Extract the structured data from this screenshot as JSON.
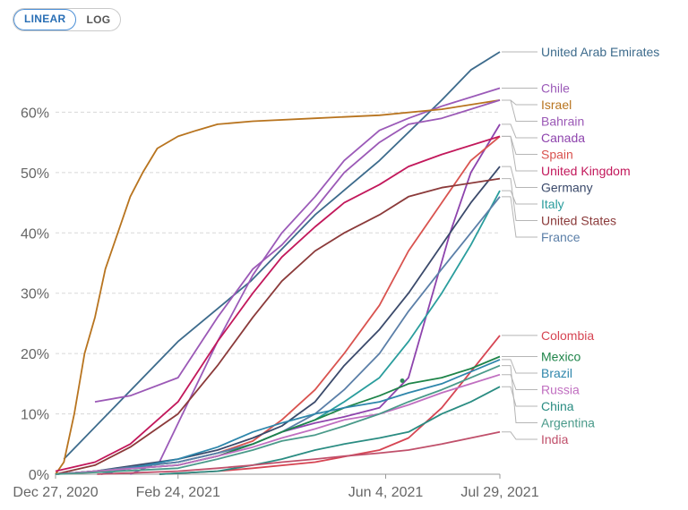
{
  "toggle": {
    "linear_label": "LINEAR",
    "log_label": "LOG",
    "active": "linear"
  },
  "chart_data": {
    "type": "line",
    "title": "",
    "xlabel": "",
    "ylabel": "",
    "x_ticks": [
      "Dec 27, 2020",
      "Feb 24, 2021",
      "Jun 4, 2021",
      "Jul 29, 2021"
    ],
    "x_range": [
      "2020-12-27",
      "2021-07-29"
    ],
    "y_ticks": [
      "0%",
      "10%",
      "20%",
      "30%",
      "40%",
      "50%",
      "60%"
    ],
    "y_range": [
      0,
      70
    ],
    "grid": "horizontal",
    "dot": {
      "x": "2021-06-12",
      "y": 15.5,
      "color": "#2e8b57"
    },
    "series": [
      {
        "name": "United Arab Emirates",
        "color": "#3d6b8c",
        "points": [
          [
            "2020-12-31",
            2.5
          ],
          [
            "2021-02-24",
            22
          ],
          [
            "2021-03-31",
            32
          ],
          [
            "2021-05-01",
            43
          ],
          [
            "2021-06-01",
            52
          ],
          [
            "2021-07-01",
            62
          ],
          [
            "2021-07-15",
            67
          ],
          [
            "2021-07-29",
            70
          ]
        ]
      },
      {
        "name": "Chile",
        "color": "#9b5ab8",
        "points": [
          [
            "2021-02-01",
            0
          ],
          [
            "2021-02-15",
            2
          ],
          [
            "2021-03-01",
            12
          ],
          [
            "2021-03-15",
            22
          ],
          [
            "2021-04-01",
            33
          ],
          [
            "2021-04-15",
            40
          ],
          [
            "2021-05-01",
            46
          ],
          [
            "2021-05-15",
            52
          ],
          [
            "2021-06-01",
            57
          ],
          [
            "2021-06-15",
            59
          ],
          [
            "2021-07-01",
            61
          ],
          [
            "2021-07-29",
            64
          ]
        ]
      },
      {
        "name": "Israel",
        "color": "#b8741f",
        "points": [
          [
            "2020-12-27",
            0
          ],
          [
            "2020-12-31",
            2
          ],
          [
            "2021-01-05",
            10
          ],
          [
            "2021-01-10",
            20
          ],
          [
            "2021-01-15",
            26
          ],
          [
            "2021-01-20",
            34
          ],
          [
            "2021-01-26",
            40
          ],
          [
            "2021-02-01",
            46
          ],
          [
            "2021-02-07",
            50
          ],
          [
            "2021-02-14",
            54
          ],
          [
            "2021-02-24",
            56
          ],
          [
            "2021-03-05",
            57
          ],
          [
            "2021-03-15",
            58
          ],
          [
            "2021-04-01",
            58.5
          ],
          [
            "2021-05-01",
            59
          ],
          [
            "2021-06-01",
            59.5
          ],
          [
            "2021-07-01",
            60.5
          ],
          [
            "2021-07-29",
            62
          ]
        ]
      },
      {
        "name": "Bahrain",
        "color": "#9b59b6",
        "points": [
          [
            "2021-01-15",
            12
          ],
          [
            "2021-02-01",
            13
          ],
          [
            "2021-02-24",
            16
          ],
          [
            "2021-03-15",
            26
          ],
          [
            "2021-04-01",
            34
          ],
          [
            "2021-04-15",
            38
          ],
          [
            "2021-05-01",
            44
          ],
          [
            "2021-05-15",
            50
          ],
          [
            "2021-06-01",
            55
          ],
          [
            "2021-06-15",
            58
          ],
          [
            "2021-07-01",
            59
          ],
          [
            "2021-07-29",
            62
          ]
        ]
      },
      {
        "name": "Canada",
        "color": "#8e44ad",
        "points": [
          [
            "2020-12-27",
            0
          ],
          [
            "2021-01-15",
            0.5
          ],
          [
            "2021-02-24",
            1.5
          ],
          [
            "2021-03-15",
            3
          ],
          [
            "2021-04-01",
            5
          ],
          [
            "2021-04-15",
            7
          ],
          [
            "2021-05-01",
            8.5
          ],
          [
            "2021-05-15",
            9.5
          ],
          [
            "2021-06-01",
            11
          ],
          [
            "2021-06-15",
            16
          ],
          [
            "2021-06-25",
            28
          ],
          [
            "2021-07-05",
            40
          ],
          [
            "2021-07-15",
            50
          ],
          [
            "2021-07-29",
            58
          ]
        ]
      },
      {
        "name": "Spain",
        "color": "#d9534f",
        "points": [
          [
            "2020-12-27",
            0
          ],
          [
            "2021-01-15",
            0.5
          ],
          [
            "2021-02-24",
            2
          ],
          [
            "2021-03-15",
            3.5
          ],
          [
            "2021-04-01",
            5.5
          ],
          [
            "2021-04-15",
            9
          ],
          [
            "2021-05-01",
            14
          ],
          [
            "2021-05-15",
            20
          ],
          [
            "2021-06-01",
            28
          ],
          [
            "2021-06-15",
            37
          ],
          [
            "2021-07-01",
            45
          ],
          [
            "2021-07-15",
            52
          ],
          [
            "2021-07-29",
            56
          ]
        ]
      },
      {
        "name": "United Kingdom",
        "color": "#c2185b",
        "points": [
          [
            "2020-12-27",
            0.5
          ],
          [
            "2021-01-15",
            2
          ],
          [
            "2021-02-01",
            5
          ],
          [
            "2021-02-24",
            12
          ],
          [
            "2021-03-15",
            22
          ],
          [
            "2021-04-01",
            30
          ],
          [
            "2021-04-15",
            36
          ],
          [
            "2021-05-01",
            41
          ],
          [
            "2021-05-15",
            45
          ],
          [
            "2021-06-01",
            48
          ],
          [
            "2021-06-15",
            51
          ],
          [
            "2021-07-01",
            53
          ],
          [
            "2021-07-29",
            56
          ]
        ]
      },
      {
        "name": "Germany",
        "color": "#3b4a6b",
        "points": [
          [
            "2020-12-27",
            0
          ],
          [
            "2021-01-15",
            0.5
          ],
          [
            "2021-02-24",
            2.5
          ],
          [
            "2021-03-15",
            4
          ],
          [
            "2021-04-01",
            6
          ],
          [
            "2021-04-15",
            8
          ],
          [
            "2021-05-01",
            12
          ],
          [
            "2021-05-15",
            18
          ],
          [
            "2021-06-01",
            24
          ],
          [
            "2021-06-15",
            30
          ],
          [
            "2021-07-01",
            38
          ],
          [
            "2021-07-15",
            45
          ],
          [
            "2021-07-29",
            51
          ]
        ]
      },
      {
        "name": "Italy",
        "color": "#2a9d9d",
        "points": [
          [
            "2020-12-27",
            0
          ],
          [
            "2021-01-15",
            0.5
          ],
          [
            "2021-02-24",
            2
          ],
          [
            "2021-03-15",
            3.5
          ],
          [
            "2021-04-01",
            5
          ],
          [
            "2021-04-15",
            7
          ],
          [
            "2021-05-01",
            9
          ],
          [
            "2021-05-15",
            12
          ],
          [
            "2021-06-01",
            16
          ],
          [
            "2021-06-15",
            22
          ],
          [
            "2021-07-01",
            30
          ],
          [
            "2021-07-15",
            38
          ],
          [
            "2021-07-29",
            47
          ]
        ]
      },
      {
        "name": "United States",
        "color": "#8b3a3a",
        "points": [
          [
            "2020-12-27",
            0
          ],
          [
            "2021-01-15",
            1.5
          ],
          [
            "2021-02-01",
            4.5
          ],
          [
            "2021-02-24",
            10
          ],
          [
            "2021-03-15",
            18
          ],
          [
            "2021-04-01",
            26
          ],
          [
            "2021-04-15",
            32
          ],
          [
            "2021-05-01",
            37
          ],
          [
            "2021-05-15",
            40
          ],
          [
            "2021-06-01",
            43
          ],
          [
            "2021-06-15",
            46
          ],
          [
            "2021-07-01",
            47.5
          ],
          [
            "2021-07-29",
            49
          ]
        ]
      },
      {
        "name": "France",
        "color": "#5b7fa8",
        "points": [
          [
            "2020-12-27",
            0
          ],
          [
            "2021-01-15",
            0.5
          ],
          [
            "2021-02-24",
            2
          ],
          [
            "2021-03-15",
            3.5
          ],
          [
            "2021-04-01",
            5
          ],
          [
            "2021-04-15",
            7
          ],
          [
            "2021-05-01",
            10
          ],
          [
            "2021-05-15",
            14
          ],
          [
            "2021-06-01",
            20
          ],
          [
            "2021-06-15",
            27
          ],
          [
            "2021-07-01",
            34
          ],
          [
            "2021-07-15",
            40
          ],
          [
            "2021-07-29",
            46
          ]
        ]
      },
      {
        "name": "Colombia",
        "color": "#d64553",
        "points": [
          [
            "2021-02-15",
            0
          ],
          [
            "2021-03-15",
            0.5
          ],
          [
            "2021-04-01",
            1
          ],
          [
            "2021-05-01",
            2
          ],
          [
            "2021-06-01",
            4
          ],
          [
            "2021-06-15",
            6
          ],
          [
            "2021-07-01",
            11
          ],
          [
            "2021-07-15",
            17
          ],
          [
            "2021-07-29",
            23
          ]
        ]
      },
      {
        "name": "Mexico",
        "color": "#1e8449",
        "points": [
          [
            "2020-12-27",
            0
          ],
          [
            "2021-01-15",
            0.5
          ],
          [
            "2021-02-24",
            1.5
          ],
          [
            "2021-03-15",
            3
          ],
          [
            "2021-04-01",
            5
          ],
          [
            "2021-04-15",
            7
          ],
          [
            "2021-05-01",
            9
          ],
          [
            "2021-05-15",
            11
          ],
          [
            "2021-06-01",
            13
          ],
          [
            "2021-06-15",
            15
          ],
          [
            "2021-07-01",
            16
          ],
          [
            "2021-07-15",
            17.5
          ],
          [
            "2021-07-29",
            19.5
          ]
        ]
      },
      {
        "name": "Brazil",
        "color": "#2e86ab",
        "points": [
          [
            "2021-01-18",
            0
          ],
          [
            "2021-02-01",
            1
          ],
          [
            "2021-02-24",
            2.5
          ],
          [
            "2021-03-15",
            4.5
          ],
          [
            "2021-04-01",
            7
          ],
          [
            "2021-04-15",
            8.5
          ],
          [
            "2021-05-01",
            10
          ],
          [
            "2021-05-15",
            11
          ],
          [
            "2021-06-01",
            12
          ],
          [
            "2021-06-15",
            13.5
          ],
          [
            "2021-07-01",
            15
          ],
          [
            "2021-07-15",
            17
          ],
          [
            "2021-07-29",
            19
          ]
        ]
      },
      {
        "name": "Russia",
        "color": "#c06fc0",
        "points": [
          [
            "2020-12-27",
            0
          ],
          [
            "2021-01-15",
            0.5
          ],
          [
            "2021-02-24",
            1.5
          ],
          [
            "2021-03-15",
            3
          ],
          [
            "2021-04-01",
            4.5
          ],
          [
            "2021-04-15",
            6
          ],
          [
            "2021-05-01",
            7.5
          ],
          [
            "2021-05-15",
            9
          ],
          [
            "2021-06-01",
            10
          ],
          [
            "2021-06-15",
            11.5
          ],
          [
            "2021-07-01",
            13.5
          ],
          [
            "2021-07-15",
            15
          ],
          [
            "2021-07-29",
            16.5
          ]
        ]
      },
      {
        "name": "China",
        "color": "#2a8c82",
        "points": [
          [
            "2021-02-15",
            0
          ],
          [
            "2021-03-15",
            0.5
          ],
          [
            "2021-04-01",
            1.5
          ],
          [
            "2021-04-15",
            2.5
          ],
          [
            "2021-05-01",
            4
          ],
          [
            "2021-05-15",
            5
          ],
          [
            "2021-06-01",
            6
          ],
          [
            "2021-06-15",
            7
          ],
          [
            "2021-07-01",
            10
          ],
          [
            "2021-07-15",
            12
          ],
          [
            "2021-07-29",
            14.5
          ]
        ]
      },
      {
        "name": "Argentina",
        "color": "#4a9a8a",
        "points": [
          [
            "2020-12-27",
            0
          ],
          [
            "2021-01-15",
            0.3
          ],
          [
            "2021-02-24",
            1
          ],
          [
            "2021-03-15",
            2.5
          ],
          [
            "2021-04-01",
            4
          ],
          [
            "2021-04-15",
            5.5
          ],
          [
            "2021-05-01",
            6.5
          ],
          [
            "2021-05-15",
            8
          ],
          [
            "2021-06-01",
            10
          ],
          [
            "2021-06-15",
            12
          ],
          [
            "2021-07-01",
            14
          ],
          [
            "2021-07-15",
            16
          ],
          [
            "2021-07-29",
            18
          ]
        ]
      },
      {
        "name": "India",
        "color": "#c0506b",
        "points": [
          [
            "2021-01-16",
            0
          ],
          [
            "2021-02-24",
            0.5
          ],
          [
            "2021-03-15",
            1
          ],
          [
            "2021-04-01",
            1.5
          ],
          [
            "2021-04-15",
            2
          ],
          [
            "2021-05-01",
            2.5
          ],
          [
            "2021-05-15",
            3
          ],
          [
            "2021-06-01",
            3.5
          ],
          [
            "2021-06-15",
            4
          ],
          [
            "2021-07-01",
            5
          ],
          [
            "2021-07-15",
            6
          ],
          [
            "2021-07-29",
            7
          ]
        ]
      }
    ]
  }
}
